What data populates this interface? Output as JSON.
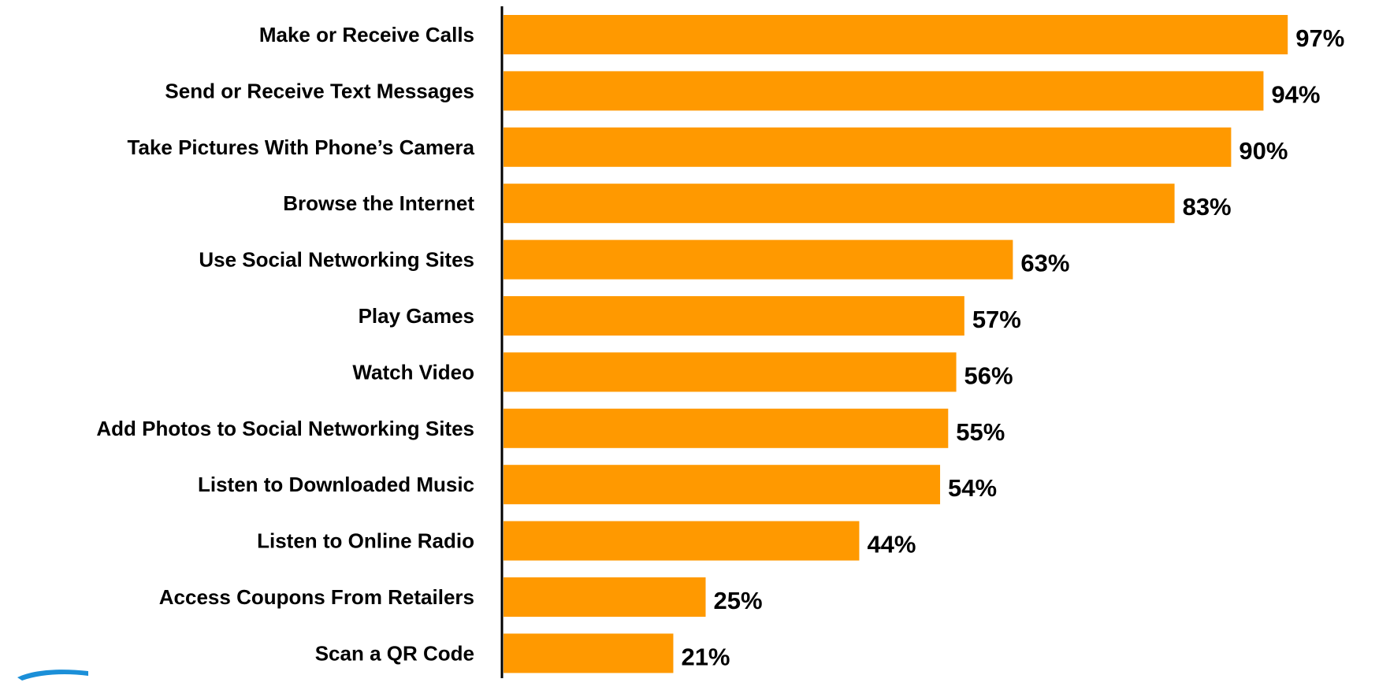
{
  "chart_data": {
    "type": "bar",
    "orientation": "horizontal",
    "categories": [
      "Make or Receive Calls",
      "Send or Receive Text Messages",
      "Take Pictures With Phone’s Camera",
      "Browse the Internet",
      "Use Social Networking Sites",
      "Play Games",
      "Watch Video",
      "Add Photos to Social Networking Sites",
      "Listen to Downloaded Music",
      "Listen to Online Radio",
      "Access Coupons From Retailers",
      "Scan a QR Code"
    ],
    "values": [
      97,
      94,
      90,
      83,
      63,
      57,
      56,
      55,
      54,
      44,
      25,
      21
    ],
    "value_labels": [
      "97%",
      "94%",
      "90%",
      "83%",
      "63%",
      "57%",
      "56%",
      "55%",
      "54%",
      "44%",
      "25%",
      "21%"
    ],
    "xlim": [
      0,
      100
    ],
    "bar_color": "#FF9900",
    "axis_color": "#000000",
    "grid": false,
    "legend": "none",
    "title": "",
    "xlabel": "",
    "ylabel": ""
  },
  "logo": {
    "icon": "blue-swoosh-logo-icon",
    "color": "#1B8FD8"
  }
}
